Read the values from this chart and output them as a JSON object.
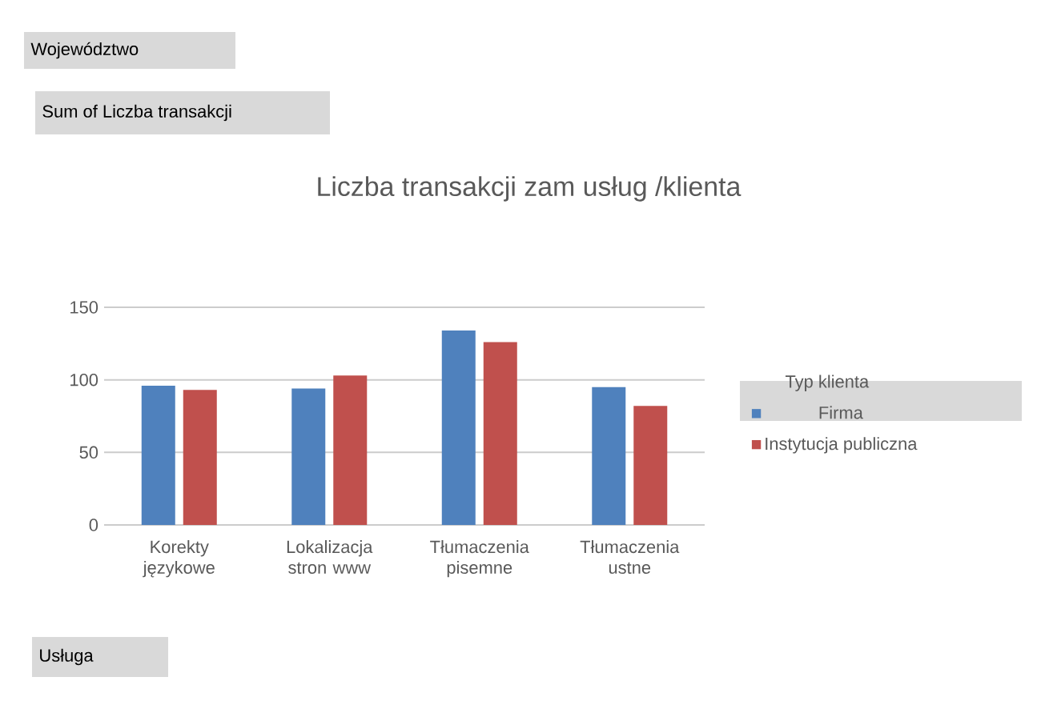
{
  "chart_data": {
    "type": "bar",
    "title": "Liczba transakcji zam usług /klienta",
    "categories": [
      "Korekty językowe",
      "Lokalizacja stron www",
      "Tłumaczenia pisemne",
      "Tłumaczenia ustne"
    ],
    "series": [
      {
        "name": "Firma",
        "color": "#4f81bd",
        "values": [
          96,
          94,
          134,
          95
        ]
      },
      {
        "name": "Instytucja publiczna",
        "color": "#c0504d",
        "values": [
          93,
          103,
          126,
          82
        ]
      }
    ],
    "ylim": [
      0,
      150
    ],
    "yticks": [
      0,
      50,
      100,
      150
    ],
    "grid": "y",
    "legend": "right",
    "legend_title": "Typ klienta",
    "annotations": [
      "Województwo",
      "Sum of Liczba transakcji",
      "Usługa"
    ]
  }
}
